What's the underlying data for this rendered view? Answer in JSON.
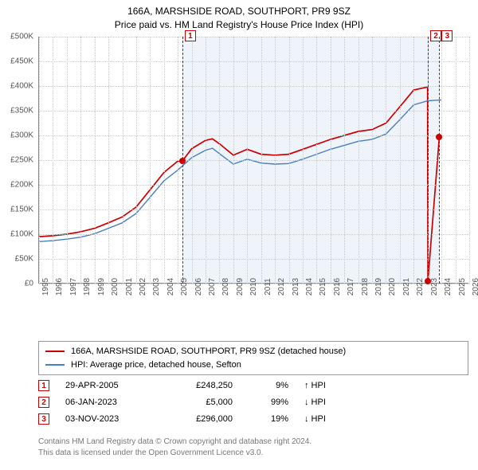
{
  "title": "166A, MARSHSIDE ROAD, SOUTHPORT, PR9 9SZ",
  "subtitle": "Price paid vs. HM Land Registry's House Price Index (HPI)",
  "chart": {
    "type": "line",
    "background_color": "#ffffff",
    "grid_color": "#c8c8c8",
    "axis_color": "#888888",
    "text_color": "#555555",
    "label_fontsize": 10,
    "xlim": [
      1995,
      2026
    ],
    "ylim": [
      0,
      500000
    ],
    "ytick_step": 50000,
    "yticks": [
      "£0",
      "£50K",
      "£100K",
      "£150K",
      "£200K",
      "£250K",
      "£300K",
      "£350K",
      "£400K",
      "£450K",
      "£500K"
    ],
    "xticks": [
      1995,
      1996,
      1997,
      1998,
      1999,
      2000,
      2001,
      2002,
      2003,
      2004,
      2005,
      2006,
      2007,
      2008,
      2009,
      2010,
      2011,
      2012,
      2013,
      2014,
      2015,
      2016,
      2017,
      2018,
      2019,
      2020,
      2021,
      2022,
      2023,
      2024,
      2025,
      2026
    ],
    "shade_start": 2005.33,
    "shade_end": 2023.84,
    "shade_color": "rgba(180,200,230,0.22)",
    "series": [
      {
        "name": "red",
        "color": "#cc0000",
        "width": 1.7,
        "data": [
          [
            1995,
            95000
          ],
          [
            1996,
            97000
          ],
          [
            1997,
            100000
          ],
          [
            1998,
            105000
          ],
          [
            1999,
            112000
          ],
          [
            2000,
            123000
          ],
          [
            2001,
            135000
          ],
          [
            2002,
            155000
          ],
          [
            2003,
            190000
          ],
          [
            2004,
            225000
          ],
          [
            2005,
            248000
          ],
          [
            2005.33,
            248250
          ],
          [
            2006,
            273000
          ],
          [
            2007,
            290000
          ],
          [
            2007.5,
            293000
          ],
          [
            2008,
            283000
          ],
          [
            2009,
            260000
          ],
          [
            2010,
            272000
          ],
          [
            2011,
            262000
          ],
          [
            2012,
            260000
          ],
          [
            2013,
            262000
          ],
          [
            2014,
            272000
          ],
          [
            2015,
            282000
          ],
          [
            2016,
            292000
          ],
          [
            2017,
            300000
          ],
          [
            2018,
            308000
          ],
          [
            2019,
            312000
          ],
          [
            2020,
            325000
          ],
          [
            2021,
            358000
          ],
          [
            2022,
            392000
          ],
          [
            2023,
            398000
          ],
          [
            2023.02,
            5000
          ],
          [
            2023.84,
            296000
          ]
        ]
      },
      {
        "name": "blue",
        "color": "#4a7fbf",
        "width": 1.4,
        "data": [
          [
            1995,
            85000
          ],
          [
            1996,
            87000
          ],
          [
            1997,
            90000
          ],
          [
            1998,
            94000
          ],
          [
            1999,
            101000
          ],
          [
            2000,
            112000
          ],
          [
            2001,
            123000
          ],
          [
            2002,
            142000
          ],
          [
            2003,
            175000
          ],
          [
            2004,
            208000
          ],
          [
            2005,
            230000
          ],
          [
            2006,
            255000
          ],
          [
            2007,
            270000
          ],
          [
            2007.5,
            274000
          ],
          [
            2008,
            263000
          ],
          [
            2009,
            242000
          ],
          [
            2010,
            252000
          ],
          [
            2011,
            244000
          ],
          [
            2012,
            242000
          ],
          [
            2013,
            243000
          ],
          [
            2014,
            252000
          ],
          [
            2015,
            262000
          ],
          [
            2016,
            272000
          ],
          [
            2017,
            280000
          ],
          [
            2018,
            288000
          ],
          [
            2019,
            292000
          ],
          [
            2020,
            303000
          ],
          [
            2021,
            332000
          ],
          [
            2022,
            362000
          ],
          [
            2023,
            370000
          ],
          [
            2024,
            372000
          ]
        ]
      }
    ],
    "markers": [
      {
        "n": "1",
        "x": 2005.33,
        "y": 248250,
        "label_y": -8
      },
      {
        "n": "2",
        "x": 2023.02,
        "y": 5000,
        "label_y": -8
      },
      {
        "n": "3",
        "x": 2023.84,
        "y": 296000,
        "label_y": -8
      }
    ]
  },
  "legend": {
    "items": [
      {
        "color": "#cc0000",
        "label": "166A, MARSHSIDE ROAD, SOUTHPORT, PR9 9SZ (detached house)"
      },
      {
        "color": "#4a7fbf",
        "label": "HPI: Average price, detached house, Sefton"
      }
    ]
  },
  "transactions": [
    {
      "n": "1",
      "date": "29-APR-2005",
      "price": "£248,250",
      "pct": "9%",
      "arrow": "↑",
      "tag": "HPI"
    },
    {
      "n": "2",
      "date": "06-JAN-2023",
      "price": "£5,000",
      "pct": "99%",
      "arrow": "↓",
      "tag": "HPI"
    },
    {
      "n": "3",
      "date": "03-NOV-2023",
      "price": "£296,000",
      "pct": "19%",
      "arrow": "↓",
      "tag": "HPI"
    }
  ],
  "footer": {
    "line1": "Contains HM Land Registry data © Crown copyright and database right 2024.",
    "line2": "This data is licensed under the Open Government Licence v3.0."
  }
}
